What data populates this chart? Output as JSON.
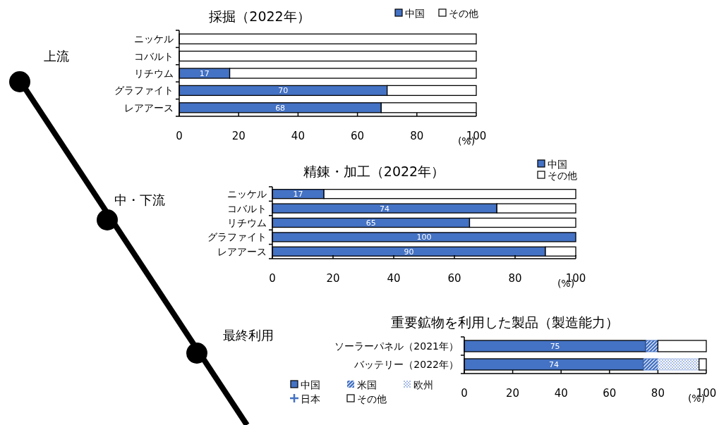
{
  "chart_data": [
    {
      "type": "bar",
      "orientation": "horizontal",
      "stacked": true,
      "title": "採掘（2022年）",
      "xlabel": "(%)",
      "categories": [
        "ニッケル",
        "コバルト",
        "リチウム",
        "グラファイト",
        "レアアース"
      ],
      "series": [
        {
          "name": "中国",
          "color": "#4472c4",
          "values": [
            0,
            0,
            17,
            70,
            68
          ],
          "value_labels": [
            null,
            null,
            "17",
            "70",
            "68"
          ]
        },
        {
          "name": "その他",
          "color": "#ffffff",
          "values": [
            100,
            100,
            83,
            30,
            32
          ]
        }
      ],
      "xlim": [
        0,
        100
      ],
      "xticks": [
        0,
        20,
        40,
        60,
        80,
        100
      ],
      "legend": "top right"
    },
    {
      "type": "bar",
      "orientation": "horizontal",
      "stacked": true,
      "title": "精錬・加工（2022年）",
      "xlabel": "(%)",
      "categories": [
        "ニッケル",
        "コバルト",
        "リチウム",
        "グラファイト",
        "レアアース"
      ],
      "series": [
        {
          "name": "中国",
          "color": "#4472c4",
          "values": [
            17,
            74,
            65,
            100,
            90
          ],
          "value_labels": [
            "17",
            "74",
            "65",
            "100",
            "90"
          ]
        },
        {
          "name": "その他",
          "color": "#ffffff",
          "values": [
            83,
            26,
            35,
            0,
            10
          ]
        }
      ],
      "xlim": [
        0,
        100
      ],
      "xticks": [
        0,
        20,
        40,
        60,
        80,
        100
      ],
      "legend": "top right"
    },
    {
      "type": "bar",
      "orientation": "horizontal",
      "stacked": true,
      "title": "重要鉱物を利用した製品（製造能力）",
      "xlabel": "(%)",
      "categories": [
        "ソーラーパネル（2021年）",
        "バッテリー（2022年）"
      ],
      "series": [
        {
          "name": "中国",
          "color": "#4472c4",
          "values": [
            75,
            74
          ],
          "value_labels": [
            "75",
            "74"
          ]
        },
        {
          "name": "米国",
          "color": "#4472c4",
          "values": [
            5,
            6
          ]
        },
        {
          "name": "欧州",
          "color": "#a9bde6",
          "values": [
            null,
            17
          ]
        },
        {
          "name": "日本",
          "color": "#4472c4",
          "values": [
            null,
            null
          ]
        },
        {
          "name": "その他",
          "color": "#ffffff",
          "values": [
            20,
            3
          ]
        }
      ],
      "xlim": [
        0,
        100
      ],
      "xticks": [
        0,
        20,
        40,
        60,
        80,
        100
      ],
      "legend": "bottom left"
    },
    {
      "type": "other",
      "annotations": [
        "上流",
        "中・下流",
        "最終利用"
      ]
    }
  ]
}
